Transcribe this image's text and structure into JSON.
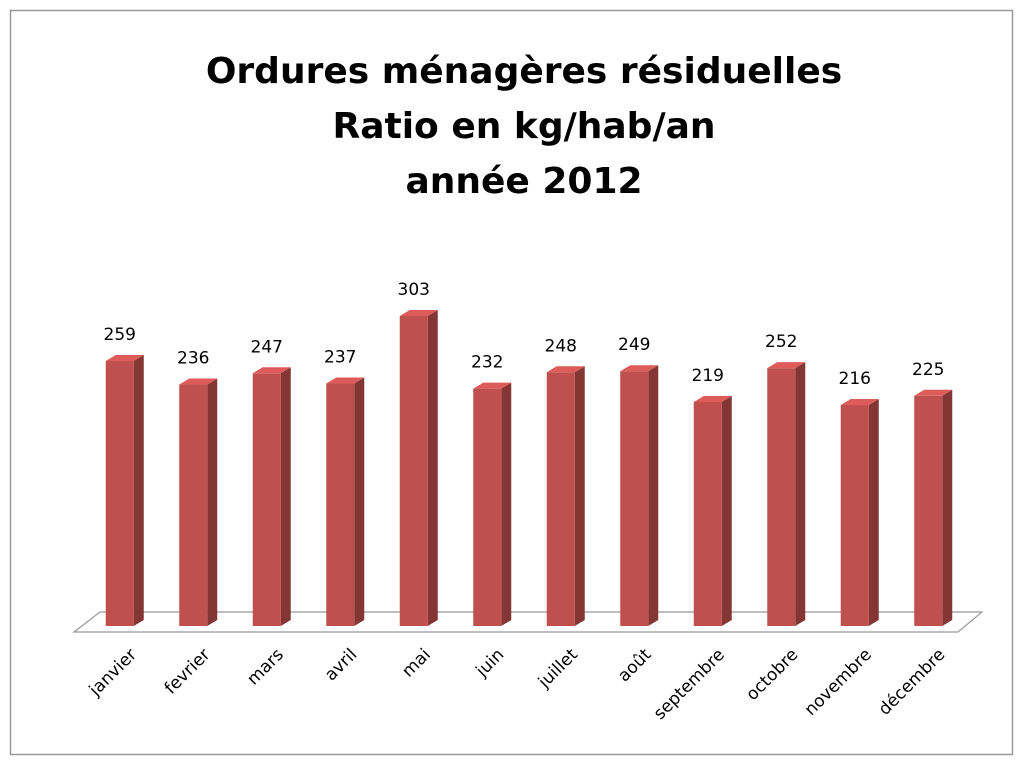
{
  "chart_data": {
    "type": "bar3d",
    "title": [
      "Ordures ménagères résiduelles",
      "Ratio en kg/hab/an",
      "année 2012"
    ],
    "categories": [
      "janvier",
      "fevrier",
      "mars",
      "avril",
      "mai",
      "juin",
      "juillet",
      "août",
      "septembre",
      "octobre",
      "novembre",
      "décembre"
    ],
    "values": [
      259,
      236,
      247,
      237,
      303,
      232,
      248,
      249,
      219,
      252,
      216,
      225
    ],
    "color": "#c0504d"
  }
}
